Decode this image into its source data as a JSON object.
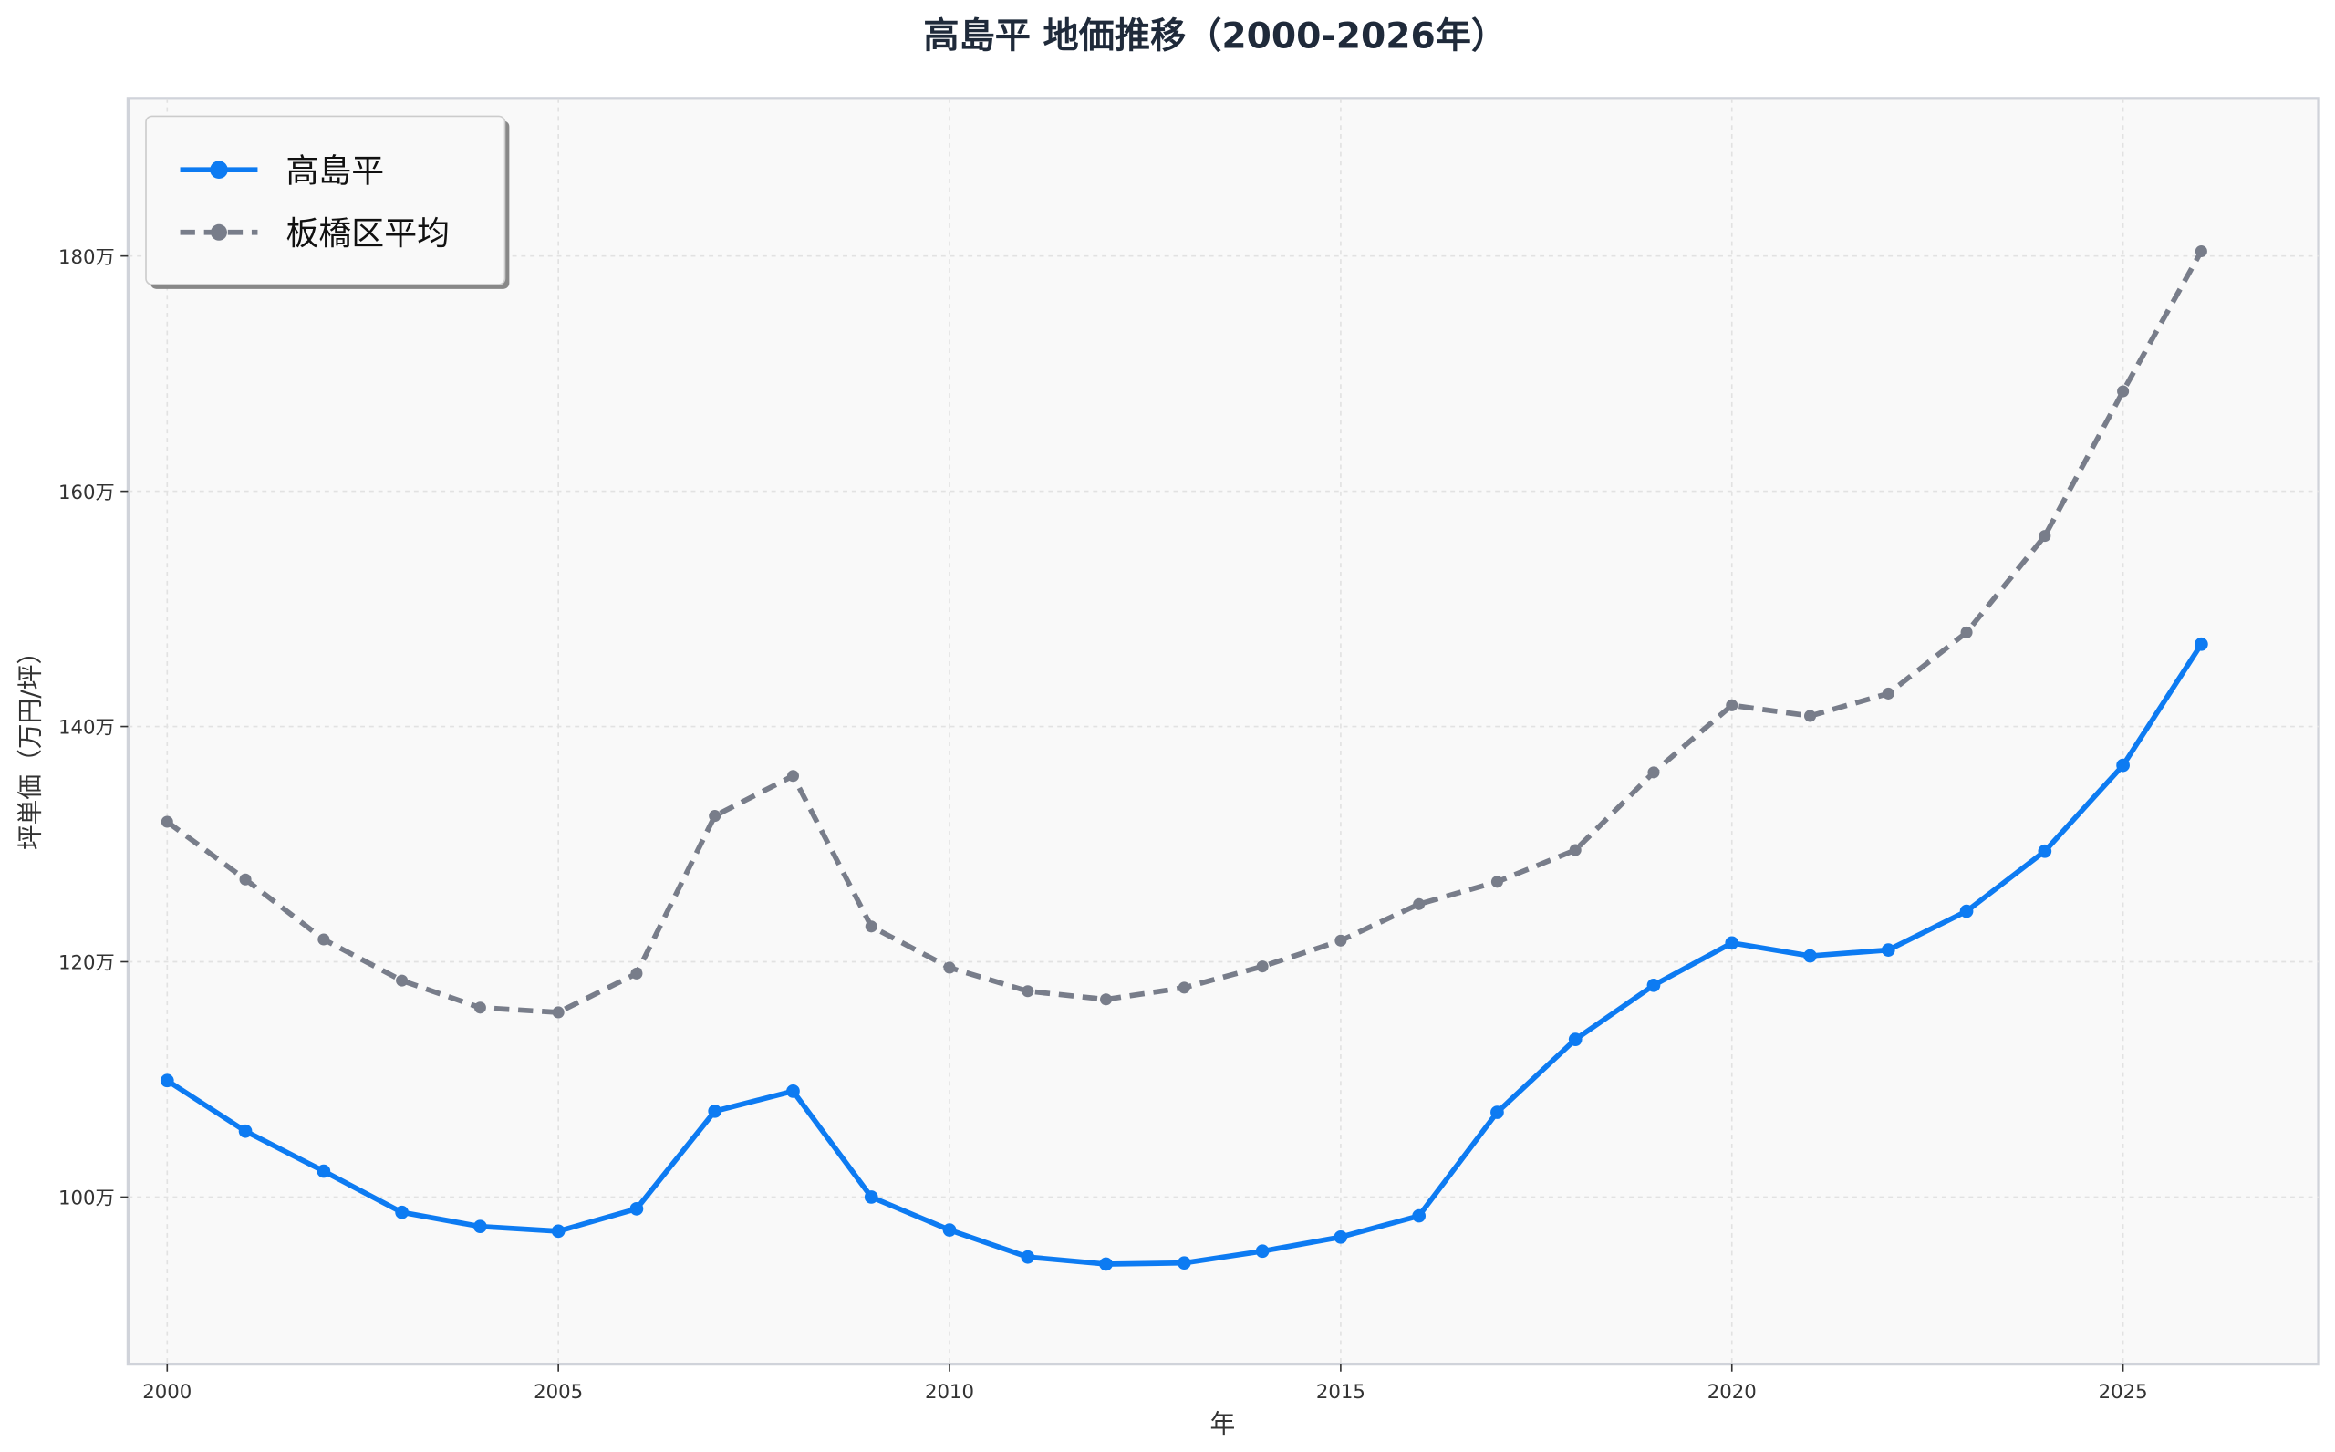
{
  "chart_data": {
    "type": "line",
    "title": "高島平 地価推移（2000-2026年）",
    "xlabel": "年",
    "ylabel": "坪単価（万円/坪）",
    "xlim": [
      1999.5,
      2027.5
    ],
    "ylim": [
      85.8,
      193.4
    ],
    "xticks": [
      2000,
      2005,
      2010,
      2015,
      2020,
      2025
    ],
    "xtick_labels": [
      "2000",
      "2005",
      "2010",
      "2015",
      "2020",
      "2025"
    ],
    "yticks": [
      100,
      120,
      140,
      160,
      180
    ],
    "ytick_labels": [
      "100万",
      "120万",
      "140万",
      "160万",
      "180万"
    ],
    "grid": true,
    "legend_position": "top-left",
    "x": [
      2000,
      2001,
      2002,
      2003,
      2004,
      2005,
      2006,
      2007,
      2008,
      2009,
      2010,
      2011,
      2012,
      2013,
      2014,
      2015,
      2016,
      2017,
      2018,
      2019,
      2020,
      2021,
      2022,
      2023,
      2024,
      2025,
      2026
    ],
    "series": [
      {
        "name": "高島平",
        "color": "#0d7bf2",
        "style": "solid",
        "values": [
          109.9,
          105.6,
          102.2,
          98.7,
          97.5,
          97.1,
          99.0,
          107.3,
          109.0,
          100.0,
          97.2,
          94.9,
          94.3,
          94.4,
          95.4,
          96.6,
          98.4,
          107.2,
          113.4,
          118.0,
          121.6,
          120.5,
          121.0,
          124.3,
          129.4,
          136.7,
          147.0
        ]
      },
      {
        "name": "板橋区平均",
        "color": "#787d8a",
        "style": "dashed",
        "values": [
          131.9,
          127.0,
          121.9,
          118.4,
          116.1,
          115.7,
          119.0,
          132.4,
          135.8,
          123.0,
          119.5,
          117.5,
          116.8,
          117.8,
          119.6,
          121.8,
          124.9,
          126.8,
          129.5,
          136.1,
          141.8,
          140.9,
          142.8,
          148.0,
          156.2,
          168.5,
          180.4
        ]
      }
    ]
  }
}
